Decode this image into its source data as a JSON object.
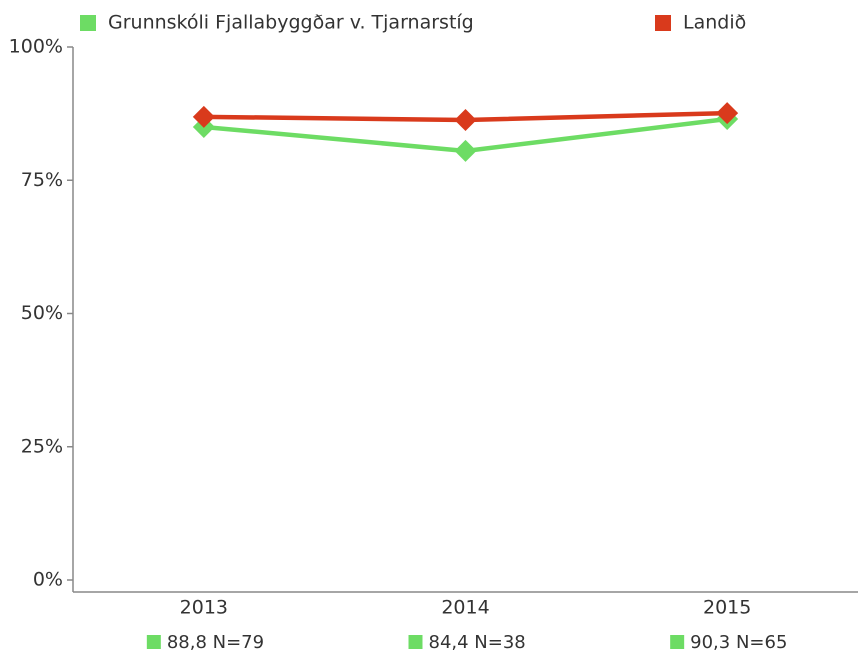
{
  "chart_data": {
    "type": "line",
    "categories": [
      "2013",
      "2014",
      "2015"
    ],
    "series": [
      {
        "name": "Grunnskóli Fjallabyggðar v. Tjarnarstíg",
        "color": "#6ddc64",
        "values": [
          85.0,
          80.5,
          86.5
        ]
      },
      {
        "name": "Landið",
        "color": "#d93a1c",
        "values": [
          86.9,
          86.3,
          87.6
        ]
      }
    ],
    "ylim": [
      0,
      100
    ],
    "yticks": [
      {
        "value": 0,
        "label": "0%"
      },
      {
        "value": 25,
        "label": "25%"
      },
      {
        "value": 50,
        "label": "50%"
      },
      {
        "value": 75,
        "label": "75%"
      },
      {
        "value": 100,
        "label": "100%"
      }
    ],
    "annotations": [
      "88,8 N=79",
      "84,4 N=38",
      "90,3 N=65"
    ]
  }
}
